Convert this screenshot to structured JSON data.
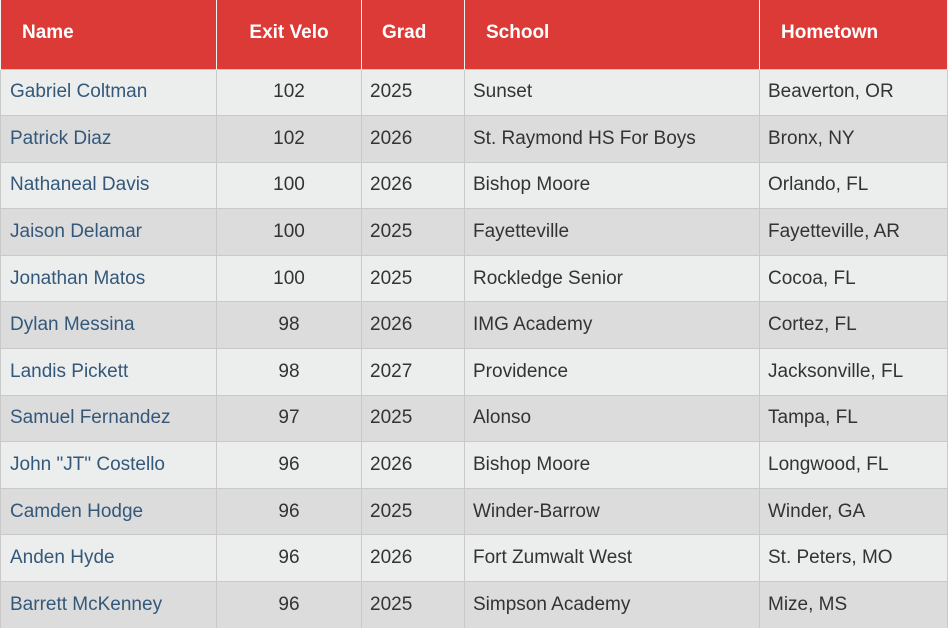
{
  "colors": {
    "header_bg": "#dc3a36",
    "header_text": "#ffffff",
    "row_odd": "#eceeed",
    "row_even": "#dcdcdc",
    "name_link": "#34587a",
    "cell_text": "#333333"
  },
  "table": {
    "headers": {
      "name": "Name",
      "exit_velo": "Exit Velo",
      "grad": "Grad",
      "school": "School",
      "hometown": "Hometown"
    },
    "rows": [
      {
        "name": "Gabriel Coltman",
        "exit_velo": "102",
        "grad": "2025",
        "school": "Sunset",
        "hometown": "Beaverton, OR"
      },
      {
        "name": "Patrick Diaz",
        "exit_velo": "102",
        "grad": "2026",
        "school": "St. Raymond HS For Boys",
        "hometown": "Bronx, NY"
      },
      {
        "name": "Nathaneal Davis",
        "exit_velo": "100",
        "grad": "2026",
        "school": "Bishop Moore",
        "hometown": "Orlando, FL"
      },
      {
        "name": "Jaison Delamar",
        "exit_velo": "100",
        "grad": "2025",
        "school": "Fayetteville",
        "hometown": "Fayetteville, AR"
      },
      {
        "name": "Jonathan Matos",
        "exit_velo": "100",
        "grad": "2025",
        "school": "Rockledge Senior",
        "hometown": "Cocoa, FL"
      },
      {
        "name": "Dylan Messina",
        "exit_velo": "98",
        "grad": "2026",
        "school": "IMG Academy",
        "hometown": "Cortez, FL"
      },
      {
        "name": "Landis Pickett",
        "exit_velo": "98",
        "grad": "2027",
        "school": "Providence",
        "hometown": "Jacksonville, FL"
      },
      {
        "name": "Samuel Fernandez",
        "exit_velo": "97",
        "grad": "2025",
        "school": "Alonso",
        "hometown": "Tampa, FL"
      },
      {
        "name": "John \"JT\" Costello",
        "exit_velo": "96",
        "grad": "2026",
        "school": "Bishop Moore",
        "hometown": "Longwood, FL"
      },
      {
        "name": "Camden Hodge",
        "exit_velo": "96",
        "grad": "2025",
        "school": "Winder-Barrow",
        "hometown": "Winder, GA"
      },
      {
        "name": "Anden Hyde",
        "exit_velo": "96",
        "grad": "2026",
        "school": "Fort Zumwalt West",
        "hometown": "St. Peters, MO"
      },
      {
        "name": "Barrett McKenney",
        "exit_velo": "96",
        "grad": "2025",
        "school": "Simpson Academy",
        "hometown": "Mize, MS"
      }
    ]
  }
}
